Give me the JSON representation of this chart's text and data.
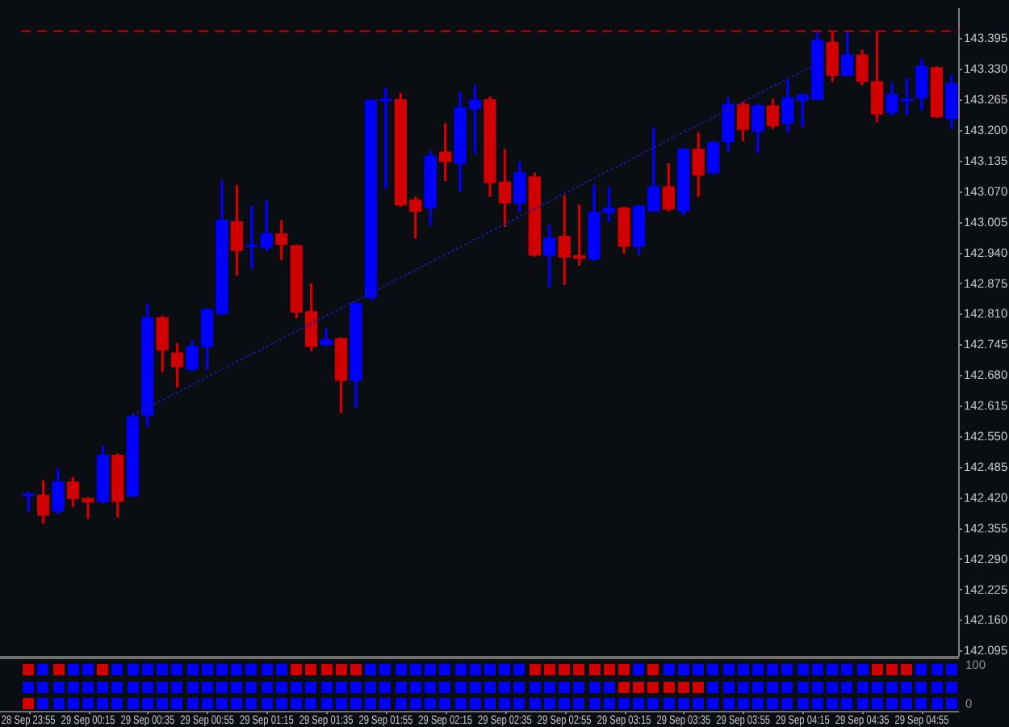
{
  "chart_data": {
    "type": "candlestick",
    "categories": [
      "28 Sep 23:55",
      null,
      null,
      null,
      "29 Sep 00:15",
      null,
      null,
      null,
      "29 Sep 00:35",
      null,
      null,
      null,
      "29 Sep 00:55",
      null,
      null,
      null,
      "29 Sep 01:15",
      null,
      null,
      null,
      "29 Sep 01:35",
      null,
      null,
      null,
      "29 Sep 01:55",
      null,
      null,
      null,
      "29 Sep 02:15",
      null,
      null,
      null,
      "29 Sep 02:35",
      null,
      null,
      null,
      "29 Sep 02:55",
      null,
      null,
      null,
      "29 Sep 03:15",
      null,
      null,
      null,
      "29 Sep 03:35",
      null,
      null,
      null,
      "29 Sep 03:55",
      null,
      null,
      null,
      "29 Sep 04:15",
      null,
      null,
      null,
      "29 Sep 04:35",
      null,
      null,
      null,
      "29 Sep 04:55",
      null,
      null
    ],
    "ohlc": [
      [
        142.425,
        142.433,
        142.393,
        142.426
      ],
      [
        142.426,
        142.457,
        142.367,
        142.384
      ],
      [
        142.393,
        142.481,
        142.387,
        142.454
      ],
      [
        142.454,
        142.464,
        142.402,
        142.419
      ],
      [
        142.419,
        142.421,
        142.377,
        142.412
      ],
      [
        142.413,
        142.531,
        142.41,
        142.511
      ],
      [
        142.511,
        142.514,
        142.38,
        142.413
      ],
      [
        142.425,
        142.596,
        142.424,
        142.593
      ],
      [
        142.596,
        142.831,
        142.573,
        142.803
      ],
      [
        142.803,
        142.806,
        142.689,
        142.735
      ],
      [
        142.728,
        142.748,
        142.656,
        142.699
      ],
      [
        142.694,
        142.754,
        142.691,
        142.742
      ],
      [
        142.742,
        142.823,
        142.694,
        142.82
      ],
      [
        142.812,
        143.095,
        142.809,
        143.01
      ],
      [
        143.007,
        143.084,
        142.894,
        142.946
      ],
      [
        142.954,
        143.04,
        142.908,
        142.956
      ],
      [
        142.952,
        143.051,
        142.946,
        142.981
      ],
      [
        142.981,
        143.009,
        142.926,
        142.959
      ],
      [
        142.956,
        142.957,
        142.803,
        142.815
      ],
      [
        142.816,
        142.875,
        142.733,
        142.742
      ],
      [
        142.746,
        142.779,
        142.745,
        142.756
      ],
      [
        142.759,
        142.76,
        142.602,
        142.67
      ],
      [
        142.67,
        142.835,
        142.613,
        142.833
      ],
      [
        142.847,
        143.266,
        142.841,
        143.265
      ],
      [
        143.264,
        143.29,
        143.078,
        143.266
      ],
      [
        143.266,
        143.279,
        143.04,
        143.043
      ],
      [
        143.053,
        143.059,
        142.972,
        143.029
      ],
      [
        143.037,
        143.157,
        143,
        143.146
      ],
      [
        143.155,
        143.215,
        143.095,
        143.135
      ],
      [
        143.131,
        143.281,
        143.072,
        143.249
      ],
      [
        143.247,
        143.297,
        143.152,
        143.265
      ],
      [
        143.266,
        143.272,
        143.061,
        143.09
      ],
      [
        143.091,
        143.16,
        142.997,
        143.047
      ],
      [
        143.047,
        143.134,
        143.029,
        143.111
      ],
      [
        143.102,
        143.11,
        142.934,
        142.936
      ],
      [
        142.936,
        142.999,
        142.869,
        142.972
      ],
      [
        142.976,
        143.062,
        142.874,
        142.932
      ],
      [
        142.935,
        143.042,
        142.915,
        142.929
      ],
      [
        142.928,
        143.084,
        142.925,
        143.027
      ],
      [
        143.027,
        143.08,
        143.008,
        143.036
      ],
      [
        143.036,
        143.038,
        142.94,
        142.955
      ],
      [
        142.955,
        143.041,
        142.938,
        143.04
      ],
      [
        143.03,
        143.205,
        143.029,
        143.081
      ],
      [
        143.081,
        143.13,
        143.03,
        143.034
      ],
      [
        143.03,
        143.163,
        143.022,
        143.161
      ],
      [
        143.161,
        143.195,
        143.061,
        143.106
      ],
      [
        143.111,
        143.177,
        143.109,
        143.175
      ],
      [
        143.177,
        143.27,
        143.157,
        143.256
      ],
      [
        143.256,
        143.261,
        143.179,
        143.203
      ],
      [
        143.199,
        143.256,
        143.154,
        143.253
      ],
      [
        143.253,
        143.267,
        143.205,
        143.211
      ],
      [
        143.216,
        143.307,
        143.198,
        143.27
      ],
      [
        143.265,
        143.279,
        143.209,
        143.276
      ],
      [
        143.267,
        143.409,
        143.266,
        143.392
      ],
      [
        143.388,
        143.409,
        143.305,
        143.318
      ],
      [
        143.318,
        143.409,
        143.317,
        143.361
      ],
      [
        143.361,
        143.371,
        143.298,
        143.305
      ],
      [
        143.304,
        143.409,
        143.219,
        143.236
      ],
      [
        143.239,
        143.3,
        143.233,
        143.277
      ],
      [
        143.264,
        143.311,
        143.234,
        143.266
      ],
      [
        143.271,
        143.352,
        143.245,
        143.337
      ],
      [
        143.334,
        143.336,
        143.228,
        143.23
      ],
      [
        143.226,
        143.318,
        143.205,
        143.3
      ]
    ],
    "colors": [
      "#0000ff",
      "#d00000",
      "#0000ff",
      "#d00000",
      "#d00000",
      "#0000ff",
      "#d00000",
      "#0000ff",
      "#0000ff",
      "#d00000",
      "#d00000",
      "#0000ff",
      "#0000ff",
      "#0000ff",
      "#d00000",
      "#0000ff",
      "#0000ff",
      "#d00000",
      "#d00000",
      "#d00000",
      "#0000ff",
      "#d00000",
      "#0000ff",
      "#0000ff",
      "#0000ff",
      "#d00000",
      "#d00000",
      "#0000ff",
      "#d00000",
      "#0000ff",
      "#0000ff",
      "#d00000",
      "#d00000",
      "#0000ff",
      "#d00000",
      "#0000ff",
      "#d00000",
      "#d00000",
      "#0000ff",
      "#0000ff",
      "#d00000",
      "#0000ff",
      "#0000ff",
      "#d00000",
      "#0000ff",
      "#d00000",
      "#0000ff",
      "#0000ff",
      "#d00000",
      "#0000ff",
      "#d00000",
      "#0000ff",
      "#0000ff",
      "#0000ff",
      "#d00000",
      "#0000ff",
      "#d00000",
      "#d00000",
      "#0000ff",
      "#0000ff",
      "#0000ff",
      "#d00000",
      "#0000ff"
    ],
    "series": [
      {
        "type": "line",
        "values": [
          null,
          null,
          null,
          null,
          null,
          null,
          null,
          142.596,
          null,
          null,
          null,
          null,
          null,
          null,
          null,
          null,
          null,
          null,
          null,
          null,
          null,
          null,
          null,
          null,
          null,
          null,
          null,
          null,
          null,
          null,
          null,
          null,
          null,
          null,
          null,
          null,
          null,
          null,
          null,
          null,
          null,
          null,
          null,
          null,
          null,
          null,
          null,
          null,
          null,
          null,
          null,
          null,
          null,
          143.343,
          null,
          null,
          null,
          null,
          null,
          null,
          null,
          null,
          null
        ],
        "color": "#1a1aa0",
        "line_style": "dotted",
        "marker": "none"
      }
    ],
    "ylim": [
      142.085,
      143.459
    ],
    "yticks": [
      142.095,
      {
        "value": 142.16,
        "label": "142.160"
      },
      142.225,
      {
        "value": 142.29,
        "label": "142.290"
      },
      142.355,
      {
        "value": 142.42,
        "label": "142.420"
      },
      142.485,
      {
        "value": 142.55,
        "label": "142.550"
      },
      142.615,
      {
        "value": 142.68,
        "label": "142.680"
      },
      142.745,
      {
        "value": 142.81,
        "label": "142.810"
      },
      142.875,
      {
        "value": 142.94,
        "label": "142.940"
      },
      143.005,
      {
        "value": 143.07,
        "label": "143.070"
      },
      143.135,
      {
        "value": 143.2,
        "label": "143.200"
      },
      143.265,
      {
        "value": 143.33,
        "label": "143.330"
      },
      143.395
    ],
    "ref_lines": [
      {
        "axis": "y",
        "value": 143.412,
        "color": "#d00000",
        "line_style": "dashed"
      }
    ],
    "annotations": [
      "100",
      "0"
    ]
  }
}
